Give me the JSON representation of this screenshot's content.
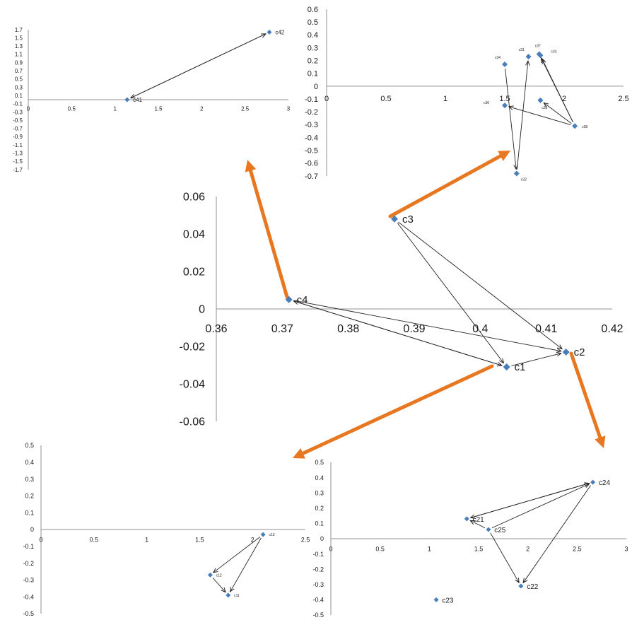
{
  "accent_color": "#E87722",
  "marker_color": "#4A7EBB",
  "chart_data": [
    {
      "id": "main",
      "type": "scatter",
      "xlim": [
        0.36,
        0.42
      ],
      "ylim": [
        -0.06,
        0.06
      ],
      "xticks": [
        "0.36",
        "0.37",
        "0.38",
        "0.39",
        "0.4",
        "0.41",
        "0.42"
      ],
      "yticks": [
        "0.06",
        "0.04",
        "0.02",
        "0",
        "-0.02",
        "-0.04",
        "-0.06"
      ],
      "points": [
        {
          "label": "c1",
          "x": 0.404,
          "y": -0.031
        },
        {
          "label": "c2",
          "x": 0.413,
          "y": -0.023
        },
        {
          "label": "c3",
          "x": 0.387,
          "y": 0.048
        },
        {
          "label": "c4",
          "x": 0.371,
          "y": 0.005
        }
      ],
      "arrows": [
        [
          "c3",
          "c1"
        ],
        [
          "c3",
          "c2"
        ],
        [
          "c4",
          "c1"
        ],
        [
          "c1",
          "c4"
        ],
        [
          "c4",
          "c2"
        ],
        [
          "c1",
          "c2"
        ]
      ]
    },
    {
      "id": "c4-zoom",
      "type": "scatter",
      "xlim": [
        0,
        3
      ],
      "ylim": [
        -1.7,
        1.7
      ],
      "xticks": [
        "0",
        "0.5",
        "1",
        "1.5",
        "2",
        "2.5",
        "3"
      ],
      "yticks": [
        "1.7",
        "1.5",
        "1.3",
        "1.1",
        "0.9",
        "0.7",
        "0.5",
        "0.3",
        "0.1",
        "-0.1",
        "-0.3",
        "-0.5",
        "-0.7",
        "-0.9",
        "-1.1",
        "-1.3",
        "-1.5",
        "-1.7"
      ],
      "points": [
        {
          "label": "c41",
          "x": 1.14,
          "y": 0
        },
        {
          "label": "c42",
          "x": 2.78,
          "y": 1.64
        }
      ],
      "arrows": [
        [
          "c42",
          "c41"
        ],
        [
          "c41",
          "c42"
        ]
      ]
    },
    {
      "id": "c3-zoom",
      "type": "scatter",
      "xlim": [
        0,
        2.5
      ],
      "ylim": [
        -0.7,
        0.6
      ],
      "xticks": [
        "0",
        "0.5",
        "1",
        "1.5",
        "2",
        "2.5"
      ],
      "yticks": [
        "0.6",
        "0.5",
        "0.4",
        "0.3",
        "0.2",
        "0.1",
        "0",
        "-0.1",
        "-0.2",
        "-0.3",
        "-0.4",
        "-0.5",
        "-0.6",
        "-0.7"
      ],
      "points": [
        {
          "label": "c31",
          "x": 1.7,
          "y": 0.23
        },
        {
          "label": "c32",
          "x": 1.6,
          "y": -0.68
        },
        {
          "label": "c33",
          "x": 1.8,
          "y": 0.24
        },
        {
          "label": "c34",
          "x": 1.5,
          "y": 0.17
        },
        {
          "label": "c35",
          "x": 1.8,
          "y": -0.11
        },
        {
          "label": "c36",
          "x": 1.5,
          "y": -0.15
        },
        {
          "label": "c37",
          "x": 1.79,
          "y": 0.25
        },
        {
          "label": "c38",
          "x": 2.09,
          "y": -0.31
        }
      ],
      "arrows": [
        [
          "c34",
          "c32"
        ],
        [
          "c32",
          "c31"
        ],
        [
          "c38",
          "c33"
        ],
        [
          "c38",
          "c37"
        ],
        [
          "c38",
          "c35"
        ],
        [
          "c38",
          "c36"
        ]
      ]
    },
    {
      "id": "c1-zoom",
      "type": "scatter",
      "xlim": [
        0,
        2.5
      ],
      "ylim": [
        -0.5,
        0.5
      ],
      "xticks": [
        "0",
        "0.5",
        "1",
        "1.5",
        "2",
        "2.5"
      ],
      "yticks": [
        "0.5",
        "0.4",
        "0.3",
        "0.2",
        "0.1",
        "0",
        "-0.1",
        "-0.2",
        "-0.3",
        "-0.4",
        "-0.5"
      ],
      "points": [
        {
          "label": "c11",
          "x": 1.77,
          "y": -0.39
        },
        {
          "label": "c12",
          "x": 1.6,
          "y": -0.27
        },
        {
          "label": "c13",
          "x": 2.1,
          "y": -0.03
        }
      ],
      "arrows": [
        [
          "c13",
          "c12"
        ],
        [
          "c13",
          "c11"
        ],
        [
          "c12",
          "c11"
        ]
      ]
    },
    {
      "id": "c2-zoom",
      "type": "scatter",
      "xlim": [
        0,
        3
      ],
      "ylim": [
        -0.5,
        0.5
      ],
      "xticks": [
        "0",
        "0.5",
        "1",
        "1.5",
        "2",
        "2.5",
        "3"
      ],
      "yticks": [
        "0.5",
        "0.4",
        "0.3",
        "0.2",
        "0.1",
        "0",
        "-0.1",
        "-0.2",
        "-0.3",
        "-0.4",
        "-0.5"
      ],
      "points": [
        {
          "label": "c21",
          "x": 1.38,
          "y": 0.13
        },
        {
          "label": "c22",
          "x": 1.93,
          "y": -0.31
        },
        {
          "label": "c23",
          "x": 1.07,
          "y": -0.4
        },
        {
          "label": "c24",
          "x": 2.66,
          "y": 0.37
        },
        {
          "label": "c25",
          "x": 1.6,
          "y": 0.06
        }
      ],
      "arrows": [
        [
          "c24",
          "c21"
        ],
        [
          "c21",
          "c24"
        ],
        [
          "c25",
          "c24"
        ],
        [
          "c24",
          "c22"
        ],
        [
          "c25",
          "c22"
        ],
        [
          "c25",
          "c21"
        ]
      ]
    }
  ]
}
